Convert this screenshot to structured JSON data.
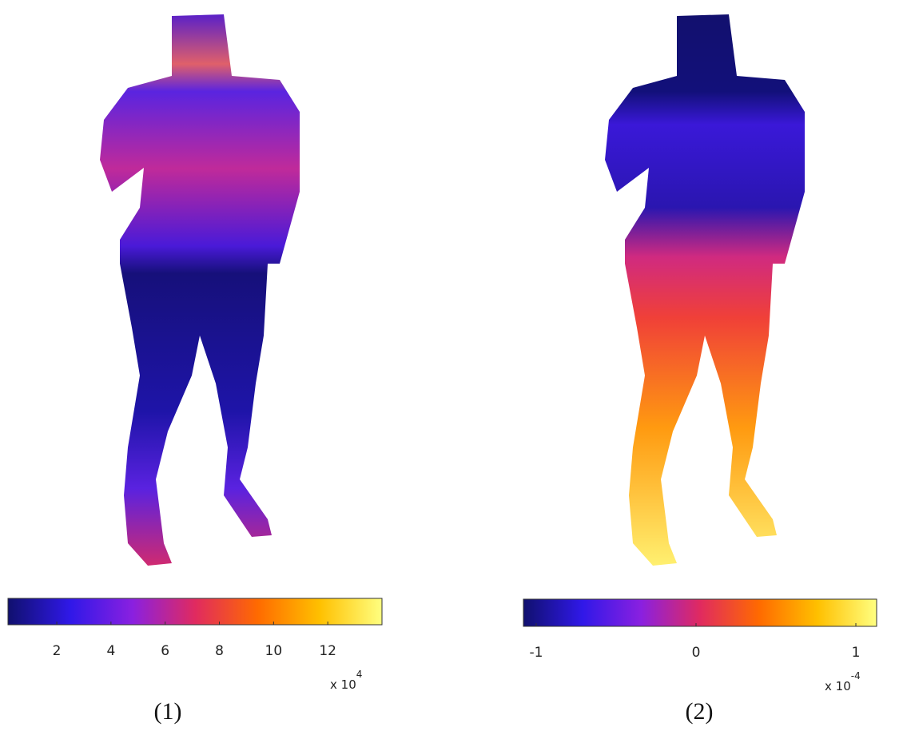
{
  "chart_data": [
    {
      "type": "colorbar",
      "colormap": [
        "#10106e",
        "#3018e8",
        "#8a20e0",
        "#e02a60",
        "#ff6a00",
        "#ffc000",
        "#ffff80"
      ],
      "xlim": [
        0.2,
        14
      ],
      "xticks": [
        2,
        4,
        6,
        8,
        10,
        12
      ],
      "offset_text": "x 10",
      "offset_exponent": "4",
      "caption": "(1)"
    },
    {
      "type": "colorbar",
      "colormap": [
        "#10106e",
        "#3018e8",
        "#8a20e0",
        "#e02a60",
        "#ff6a00",
        "#ffc000",
        "#ffff80"
      ],
      "xlim": [
        -1.08,
        1.13
      ],
      "xticks": [
        -1,
        0,
        1
      ],
      "offset_text": "x 10",
      "offset_exponent": "-4",
      "caption": "(2)"
    }
  ]
}
